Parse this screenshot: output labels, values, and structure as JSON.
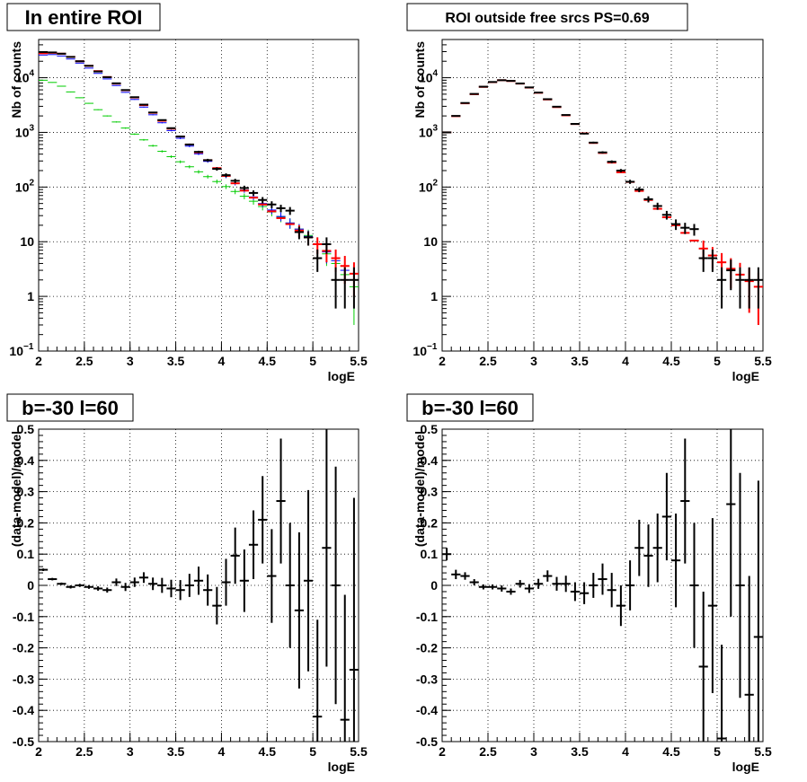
{
  "colors": {
    "data": "#000000",
    "model": "#ff0000",
    "blue": "#0000ff",
    "green": "#00cc00"
  },
  "chart_data": [
    {
      "type": "scatter",
      "title": "In entire ROI",
      "xlabel": "logE",
      "ylabel": "Nb of counts",
      "xlim": [
        2,
        5.5
      ],
      "ylim": [
        0.1,
        50000
      ],
      "ylog": true,
      "grid": true,
      "x_ticks": [
        "2",
        "2.5",
        "3",
        "3.5",
        "4",
        "4.5",
        "5",
        "5.5"
      ],
      "y_ticks": [
        {
          "v": 0.1,
          "m": "10",
          "e": "−1"
        },
        {
          "v": 1,
          "m": "1",
          "e": ""
        },
        {
          "v": 10,
          "m": "10",
          "e": ""
        },
        {
          "v": 100,
          "m": "10",
          "e": "2"
        },
        {
          "v": 1000,
          "m": "10",
          "e": "3"
        },
        {
          "v": 10000,
          "m": "10",
          "e": "4"
        }
      ],
      "series": [
        {
          "key": "green",
          "style": "line",
          "x": [
            2.05,
            2.15,
            2.25,
            2.35,
            2.45,
            2.55,
            2.65,
            2.75,
            2.85,
            2.95,
            3.05,
            3.15,
            3.25,
            3.35,
            3.45,
            3.55,
            3.65,
            3.75,
            3.85,
            3.95,
            4.05,
            4.15,
            4.25,
            4.35,
            4.45,
            4.55,
            4.65,
            4.75,
            4.85,
            4.95,
            5.05,
            5.15,
            5.25,
            5.35,
            5.45
          ],
          "y": [
            9000,
            8200,
            7000,
            5500,
            4300,
            3400,
            2600,
            2000,
            1550,
            1200,
            930,
            730,
            570,
            450,
            360,
            290,
            235,
            190,
            155,
            126,
            102,
            83,
            68,
            55,
            44,
            35,
            28,
            22,
            17,
            13,
            9,
            6,
            4,
            2.5,
            1.5
          ],
          "err": [
            95,
            90,
            84,
            74,
            66,
            58,
            51,
            45,
            39,
            35,
            30,
            27,
            24,
            21,
            19,
            17,
            15,
            14,
            12,
            11,
            10,
            9,
            8.2,
            7.4,
            6.6,
            5.9,
            5.3,
            4.7,
            4.1,
            3.6,
            3,
            2.4,
            2,
            1.6,
            1.2
          ]
        },
        {
          "key": "blue",
          "style": "line",
          "x": [
            2.05,
            2.15,
            2.25,
            2.35,
            2.45,
            2.55,
            2.65,
            2.75,
            2.85,
            2.95,
            3.05,
            3.15,
            3.25,
            3.35,
            3.45,
            3.55,
            3.65,
            3.75,
            3.85,
            3.95,
            4.05,
            4.15,
            4.25,
            4.35,
            4.45,
            4.55,
            4.65,
            4.75,
            4.85,
            4.95,
            5.05,
            5.15,
            5.25,
            5.35,
            5.45
          ],
          "y": [
            26000,
            26500,
            25000,
            22000,
            18500,
            15000,
            12000,
            9500,
            7200,
            5400,
            4000,
            2900,
            2100,
            1500,
            1080,
            780,
            560,
            405,
            295,
            215,
            158,
            118,
            88,
            66,
            50,
            38,
            29,
            22,
            17,
            12.5,
            9,
            6.5,
            4.5,
            3,
            2
          ],
          "err": [
            161,
            163,
            158,
            148,
            136,
            122,
            110,
            97,
            85,
            73,
            63,
            54,
            46,
            39,
            33,
            28,
            24,
            20,
            17,
            15,
            12.6,
            10.9,
            9.4,
            8.1,
            7.1,
            6.2,
            5.4,
            4.7,
            4.1,
            3.5,
            3,
            2.5,
            2.1,
            1.7,
            1.4
          ]
        },
        {
          "key": "model",
          "style": "cross",
          "x": [
            2.05,
            2.15,
            2.25,
            2.35,
            2.45,
            2.55,
            2.65,
            2.75,
            2.85,
            2.95,
            3.05,
            3.15,
            3.25,
            3.35,
            3.45,
            3.55,
            3.65,
            3.75,
            3.85,
            3.95,
            4.05,
            4.15,
            4.25,
            4.35,
            4.45,
            4.55,
            4.65,
            4.75,
            4.85,
            4.95,
            5.05,
            5.15,
            5.25,
            5.35,
            5.45
          ],
          "y": [
            28000,
            28500,
            27500,
            24000,
            20000,
            16500,
            13200,
            10300,
            7800,
            5900,
            4350,
            3150,
            2280,
            1630,
            1170,
            840,
            600,
            430,
            310,
            222,
            160,
            117,
            86,
            64,
            48,
            36,
            27,
            21,
            16,
            12,
            9,
            6.8,
            5,
            3.6,
            2.6
          ],
          "err": [
            0,
            0,
            0,
            0,
            0,
            0,
            0,
            0,
            0,
            0,
            0,
            0,
            0,
            0,
            0,
            0,
            0,
            0,
            0,
            0,
            0,
            0,
            0,
            0,
            0,
            0,
            0,
            0,
            4,
            3.5,
            3,
            2.6,
            2.2,
            1.9,
            1.6
          ]
        },
        {
          "key": "data",
          "style": "cross",
          "x": [
            2.05,
            2.15,
            2.25,
            2.35,
            2.45,
            2.55,
            2.65,
            2.75,
            2.85,
            2.95,
            3.05,
            3.15,
            3.25,
            3.35,
            3.45,
            3.55,
            3.65,
            3.75,
            3.85,
            3.95,
            4.05,
            4.15,
            4.25,
            4.35,
            4.45,
            4.55,
            4.65,
            4.75,
            4.85,
            4.95,
            5.05,
            5.15,
            5.25,
            5.35,
            5.45
          ],
          "y": [
            29500,
            29000,
            27500,
            24000,
            20000,
            16500,
            13000,
            10200,
            7900,
            5950,
            4400,
            3220,
            2310,
            1680,
            1195,
            840,
            600,
            440,
            310,
            215,
            165,
            130,
            96,
            78,
            58,
            48,
            41,
            37,
            15,
            12,
            5,
            9,
            2,
            2,
            2
          ],
          "err": [
            172,
            170,
            166,
            155,
            141,
            128,
            114,
            101,
            89,
            77,
            66,
            57,
            48,
            41,
            35,
            29,
            24,
            21,
            18,
            15,
            13,
            11.4,
            9.8,
            8.8,
            7.6,
            6.9,
            6.4,
            6.1,
            3.9,
            3.5,
            2.2,
            3,
            1.4,
            1.4,
            1.4
          ]
        }
      ]
    },
    {
      "type": "scatter",
      "title": "ROI outside free srcs PS=0.69",
      "xlabel": "logE",
      "ylabel": "Nb of counts",
      "xlim": [
        2,
        5.5
      ],
      "ylim": [
        0.1,
        50000
      ],
      "ylog": true,
      "grid": true,
      "x_ticks": [
        "2",
        "2.5",
        "3",
        "3.5",
        "4",
        "4.5",
        "5",
        "5.5"
      ],
      "y_ticks": [
        {
          "v": 0.1,
          "m": "10",
          "e": "−1"
        },
        {
          "v": 1,
          "m": "1",
          "e": ""
        },
        {
          "v": 10,
          "m": "10",
          "e": ""
        },
        {
          "v": 100,
          "m": "10",
          "e": "2"
        },
        {
          "v": 1000,
          "m": "10",
          "e": "3"
        },
        {
          "v": 10000,
          "m": "10",
          "e": "4"
        }
      ],
      "series": [
        {
          "key": "model",
          "style": "cross",
          "x": [
            2.05,
            2.15,
            2.25,
            2.35,
            2.45,
            2.55,
            2.65,
            2.75,
            2.85,
            2.95,
            3.05,
            3.15,
            3.25,
            3.35,
            3.45,
            3.55,
            3.65,
            3.75,
            3.85,
            3.95,
            4.05,
            4.15,
            4.25,
            4.35,
            4.45,
            4.55,
            4.65,
            4.75,
            4.85,
            4.95,
            5.05,
            5.15,
            5.25,
            5.35,
            5.45
          ],
          "y": [
            1000,
            1980,
            3400,
            5000,
            6800,
            8300,
            9000,
            8700,
            7800,
            6600,
            5300,
            4000,
            2900,
            2050,
            1420,
            960,
            640,
            420,
            280,
            186,
            124,
            85,
            58,
            40,
            28,
            20,
            14.5,
            10.5,
            7.5,
            5.6,
            4.2,
            3.2,
            2.5,
            1.9,
            1.5
          ],
          "err": [
            0,
            0,
            0,
            0,
            0,
            0,
            0,
            0,
            0,
            0,
            0,
            0,
            0,
            0,
            0,
            0,
            0,
            0,
            0,
            0,
            0,
            0,
            0,
            0,
            0,
            0,
            0,
            0,
            3,
            2.4,
            2,
            1.8,
            1.6,
            1.4,
            1.2
          ]
        },
        {
          "key": "data",
          "style": "cross",
          "x": [
            2.05,
            2.15,
            2.25,
            2.35,
            2.45,
            2.55,
            2.65,
            2.75,
            2.85,
            2.95,
            3.05,
            3.15,
            3.25,
            3.35,
            3.45,
            3.55,
            3.65,
            3.75,
            3.85,
            3.95,
            4.05,
            4.15,
            4.25,
            4.35,
            4.45,
            4.55,
            4.65,
            4.75,
            4.85,
            4.95,
            5.05,
            5.15,
            5.25,
            5.35,
            5.45
          ],
          "y": [
            1000,
            2000,
            3450,
            5050,
            6850,
            8350,
            9000,
            8750,
            7850,
            6650,
            5350,
            4050,
            2950,
            2080,
            1430,
            950,
            650,
            430,
            290,
            200,
            125,
            90,
            60,
            45,
            31,
            21,
            18,
            17,
            5,
            5,
            2,
            3,
            2,
            2,
            2
          ],
          "err": [
            31,
            45,
            59,
            71,
            83,
            91,
            95,
            94,
            89,
            82,
            73,
            64,
            54,
            46,
            38,
            31,
            25,
            21,
            17,
            14,
            11,
            9.5,
            7.7,
            6.7,
            5.6,
            4.6,
            4.2,
            4.1,
            2.2,
            2.2,
            1.4,
            1.7,
            1.4,
            1.4,
            1.4
          ]
        }
      ]
    },
    {
      "type": "scatter",
      "title": "b=-30 l=60",
      "xlabel": "logE",
      "ylabel": "(data-model)/model",
      "xlim": [
        2,
        5.5
      ],
      "ylim": [
        -0.5,
        0.5
      ],
      "ylog": false,
      "grid": true,
      "x_ticks": [
        "2",
        "2.5",
        "3",
        "3.5",
        "4",
        "4.5",
        "5",
        "5.5"
      ],
      "y_ticks": [
        "-0.5",
        "-0.4",
        "-0.3",
        "-0.2",
        "-0.1",
        "0",
        "0.1",
        "0.2",
        "0.3",
        "0.4",
        "0.5"
      ],
      "series": [
        {
          "key": "data",
          "style": "cross",
          "x": [
            2.05,
            2.15,
            2.25,
            2.35,
            2.45,
            2.55,
            2.65,
            2.75,
            2.85,
            2.95,
            3.05,
            3.15,
            3.25,
            3.35,
            3.45,
            3.55,
            3.65,
            3.75,
            3.85,
            3.95,
            4.05,
            4.15,
            4.25,
            4.35,
            4.45,
            4.55,
            4.65,
            4.75,
            4.85,
            4.95,
            5.05,
            5.15,
            5.25,
            5.35,
            5.45
          ],
          "y": [
            0.05,
            0.02,
            0.005,
            -0.005,
            0,
            -0.005,
            -0.01,
            -0.015,
            0.01,
            -0.005,
            0.01,
            0.025,
            0.005,
            0,
            -0.01,
            -0.015,
            0,
            0.015,
            -0.015,
            -0.065,
            0.01,
            0.095,
            0.015,
            0.13,
            0.21,
            0.03,
            0.27,
            0.0,
            -0.08,
            0.015,
            -0.42,
            0.12,
            0.0,
            -0.43,
            -0.27
          ],
          "err": [
            0.004,
            0.004,
            0.004,
            0.005,
            0.005,
            0.006,
            0.007,
            0.008,
            0.012,
            0.013,
            0.015,
            0.017,
            0.02,
            0.024,
            0.028,
            0.032,
            0.037,
            0.045,
            0.05,
            0.06,
            0.075,
            0.09,
            0.1,
            0.11,
            0.14,
            0.15,
            0.2,
            0.2,
            0.25,
            0.29,
            0.31,
            0.38,
            0.38,
            0.4,
            0.55
          ]
        }
      ]
    },
    {
      "type": "scatter",
      "title": "b=-30 l=60",
      "xlabel": "logE",
      "ylabel": "(data-model)/model",
      "xlim": [
        2,
        5.5
      ],
      "ylim": [
        -0.5,
        0.5
      ],
      "ylog": false,
      "grid": true,
      "x_ticks": [
        "2",
        "2.5",
        "3",
        "3.5",
        "4",
        "4.5",
        "5",
        "5.5"
      ],
      "y_ticks": [
        "-0.5",
        "-0.4",
        "-0.3",
        "-0.2",
        "-0.1",
        "0",
        "0.1",
        "0.2",
        "0.3",
        "0.4",
        "0.5"
      ],
      "series": [
        {
          "key": "data",
          "style": "cross",
          "x": [
            2.05,
            2.15,
            2.25,
            2.35,
            2.45,
            2.55,
            2.65,
            2.75,
            2.85,
            2.95,
            3.05,
            3.15,
            3.25,
            3.35,
            3.45,
            3.55,
            3.65,
            3.75,
            3.85,
            3.95,
            4.05,
            4.15,
            4.25,
            4.35,
            4.45,
            4.55,
            4.65,
            4.75,
            4.85,
            4.95,
            5.05,
            5.15,
            5.25,
            5.35,
            5.45
          ],
          "y": [
            0.1,
            0.035,
            0.03,
            0.01,
            -0.005,
            -0.005,
            -0.01,
            -0.02,
            0.005,
            -0.01,
            0.005,
            0.03,
            0.005,
            0.005,
            -0.02,
            -0.025,
            0,
            0.02,
            -0.015,
            -0.065,
            0.0,
            0.12,
            0.095,
            0.12,
            0.22,
            0.08,
            0.27,
            0.0,
            -0.26,
            -0.065,
            -0.49,
            0.26,
            0.0,
            -0.35,
            -0.165
          ],
          "err": [
            0.02,
            0.015,
            0.012,
            0.01,
            0.008,
            0.008,
            0.01,
            0.01,
            0.012,
            0.014,
            0.016,
            0.018,
            0.022,
            0.026,
            0.03,
            0.035,
            0.04,
            0.05,
            0.055,
            0.065,
            0.08,
            0.09,
            0.1,
            0.11,
            0.14,
            0.15,
            0.2,
            0.2,
            0.24,
            0.28,
            0.3,
            0.36,
            0.36,
            0.38,
            0.5
          ]
        }
      ]
    }
  ]
}
